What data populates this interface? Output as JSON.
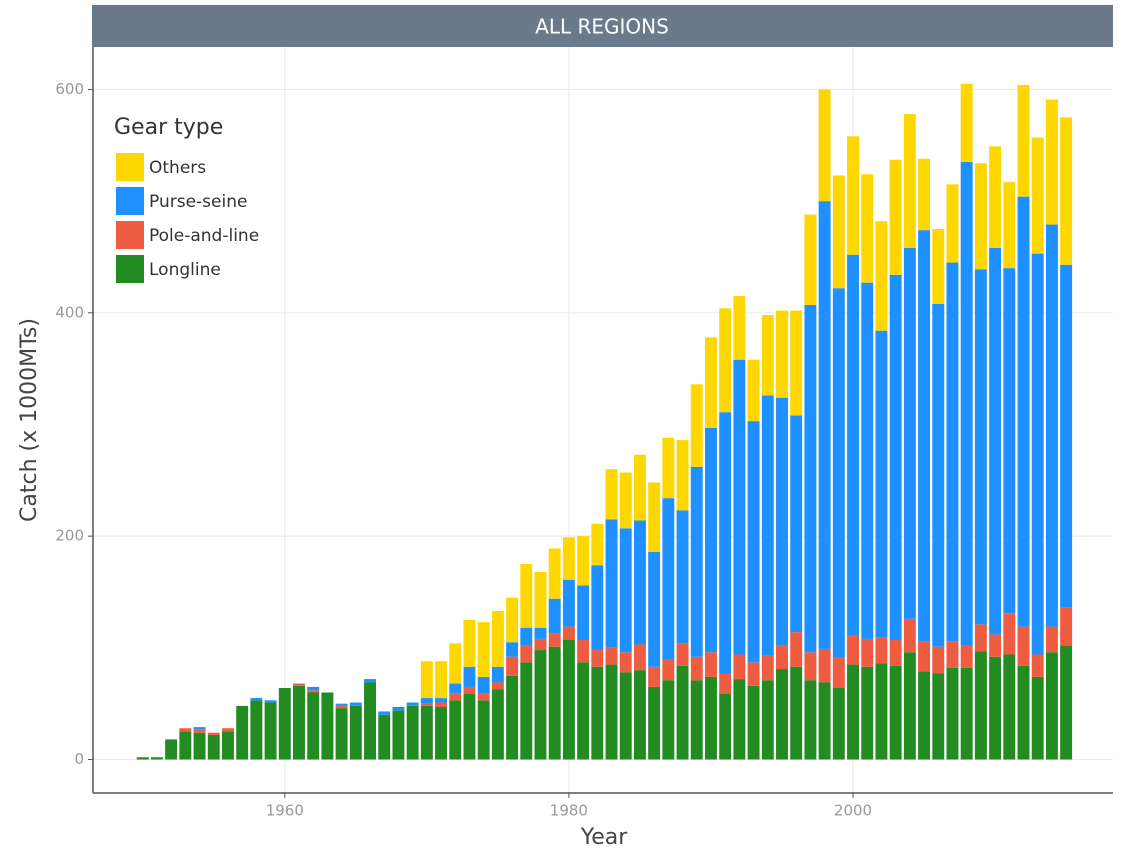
{
  "chart_data": {
    "type": "stacked_bar",
    "title": "ALL REGIONS",
    "xlabel": "Year",
    "ylabel": "Catch (x 1000MTs)",
    "legend_title": "Gear type",
    "legend_position": "top-left",
    "grid": true,
    "x": [
      1950,
      1951,
      1952,
      1953,
      1954,
      1955,
      1956,
      1957,
      1958,
      1959,
      1960,
      1961,
      1962,
      1963,
      1964,
      1965,
      1966,
      1967,
      1968,
      1969,
      1970,
      1971,
      1972,
      1973,
      1974,
      1975,
      1976,
      1977,
      1978,
      1979,
      1980,
      1981,
      1982,
      1983,
      1984,
      1985,
      1986,
      1987,
      1988,
      1989,
      1990,
      1991,
      1992,
      1993,
      1994,
      1995,
      1996,
      1997,
      1998,
      1999,
      2000,
      2001,
      2002,
      2003,
      2004,
      2005,
      2006,
      2007,
      2008,
      2009,
      2010,
      2011,
      2012,
      2013,
      2014,
      2015
    ],
    "xlim": [
      1946.5,
      2018.3
    ],
    "xticks": [
      1960,
      1980,
      2000
    ],
    "ylim": [
      -30,
      638
    ],
    "yticks": [
      0,
      200,
      400,
      600
    ],
    "series": [
      {
        "name": "Longline",
        "color": "#228b22",
        "values": [
          2,
          2,
          18,
          25,
          24,
          22,
          25,
          48,
          53,
          51,
          64,
          66,
          60,
          60,
          46,
          48,
          69,
          40,
          44,
          48,
          48,
          47,
          53,
          59,
          53,
          63,
          75,
          87,
          98,
          101,
          107,
          87,
          83,
          85,
          78,
          80,
          65,
          71,
          84,
          71,
          74,
          59,
          72,
          66,
          71,
          81,
          83,
          71,
          69,
          64,
          85,
          83,
          86,
          84,
          96,
          79,
          77,
          82,
          82,
          97,
          92,
          94,
          84,
          74,
          96,
          102
        ]
      },
      {
        "name": "Pole-and-line",
        "color": "#ee5c42",
        "values": [
          0,
          0,
          0,
          3,
          3,
          2,
          3,
          0,
          0,
          0,
          0,
          2,
          2,
          0,
          2,
          0,
          0,
          0,
          0,
          0,
          2,
          4,
          6,
          6,
          6,
          6,
          17,
          15,
          10,
          12,
          12,
          20,
          15,
          15,
          18,
          23,
          18,
          19,
          20,
          21,
          22,
          18,
          22,
          21,
          22,
          21,
          31,
          25,
          30,
          27,
          26,
          25,
          23,
          23,
          30,
          27,
          24,
          24,
          20,
          24,
          20,
          37,
          35,
          20,
          23,
          34
        ]
      },
      {
        "name": "Purse-seine",
        "color": "#1e90ff",
        "values": [
          0,
          0,
          0,
          0,
          2,
          0,
          0,
          0,
          2,
          2,
          0,
          0,
          3,
          0,
          2,
          3,
          3,
          3,
          3,
          3,
          5,
          4,
          9,
          18,
          15,
          14,
          13,
          16,
          10,
          31,
          42,
          49,
          76,
          115,
          111,
          111,
          103,
          144,
          119,
          170,
          201,
          234,
          264,
          216,
          233,
          222,
          194,
          311,
          401,
          331,
          341,
          319,
          275,
          327,
          332,
          368,
          307,
          339,
          433,
          318,
          346,
          309,
          385,
          359,
          360,
          307
        ]
      },
      {
        "name": "Others",
        "color": "#ffd700",
        "values": [
          0,
          0,
          0,
          0,
          0,
          0,
          0,
          0,
          0,
          0,
          0,
          0,
          0,
          0,
          0,
          0,
          0,
          0,
          0,
          0,
          33,
          33,
          36,
          42,
          49,
          50,
          40,
          57,
          50,
          45,
          38,
          44,
          37,
          45,
          50,
          59,
          62,
          54,
          63,
          74,
          81,
          93,
          57,
          55,
          72,
          78,
          94,
          81,
          100,
          101,
          106,
          97,
          98,
          103,
          120,
          64,
          67,
          70,
          70,
          95,
          91,
          77,
          100,
          104,
          112,
          132
        ]
      }
    ]
  }
}
